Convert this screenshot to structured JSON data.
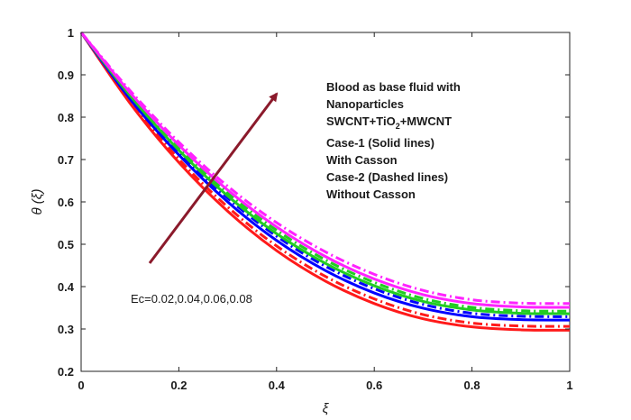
{
  "chart_data": {
    "type": "line",
    "xlabel": "ξ",
    "ylabel": "θ (ξ)",
    "xlim": [
      0,
      1
    ],
    "ylim": [
      0.2,
      1
    ],
    "x_ticks": [
      "0",
      "0.2",
      "0.4",
      "0.6",
      "0.8",
      "1"
    ],
    "y_ticks": [
      "0.2",
      "0.3",
      "0.4",
      "0.5",
      "0.6",
      "0.7",
      "0.8",
      "0.9",
      "1"
    ],
    "grid": false,
    "legend_text": {
      "line1": "Blood as base fluid with",
      "line2": "Nanoparticles",
      "line3_pre": "SWCNT+TiO",
      "line3_sub": "2",
      "line3_post": "+MWCNT",
      "line4": "Case-1 (Solid lines)",
      "line5": "With Casson",
      "line6": "Case-2 (Dashed lines)",
      "line7": "Without Casson"
    },
    "arrow_label": "Ec=0.02,0.04,0.06,0.08",
    "arrow_color": "#8b1a2b",
    "x": [
      0,
      0.1,
      0.2,
      0.3,
      0.4,
      0.5,
      0.6,
      0.7,
      0.8,
      0.9,
      1.0
    ],
    "series": [
      {
        "case": "Case-1",
        "Ec": 0.02,
        "color": "#ff1a1a",
        "style": "solid",
        "values": [
          1.0,
          0.833,
          0.693,
          0.578,
          0.485,
          0.413,
          0.36,
          0.324,
          0.305,
          0.298,
          0.297
        ]
      },
      {
        "case": "Case-2",
        "Ec": 0.02,
        "color": "#ff1a1a",
        "style": "dashed",
        "values": [
          1.0,
          0.838,
          0.701,
          0.588,
          0.496,
          0.424,
          0.371,
          0.334,
          0.314,
          0.307,
          0.306
        ]
      },
      {
        "case": "Case-1",
        "Ec": 0.04,
        "color": "#0000ff",
        "style": "solid",
        "values": [
          1.0,
          0.843,
          0.711,
          0.6,
          0.509,
          0.438,
          0.385,
          0.349,
          0.329,
          0.322,
          0.321
        ]
      },
      {
        "case": "Case-2",
        "Ec": 0.04,
        "color": "#0000ff",
        "style": "dashed",
        "values": [
          1.0,
          0.848,
          0.718,
          0.609,
          0.519,
          0.448,
          0.395,
          0.358,
          0.337,
          0.33,
          0.329
        ]
      },
      {
        "case": "Case-1",
        "Ec": 0.06,
        "color": "#22cc22",
        "style": "solid",
        "values": [
          1.0,
          0.851,
          0.722,
          0.614,
          0.525,
          0.455,
          0.402,
          0.365,
          0.345,
          0.337,
          0.336
        ]
      },
      {
        "case": "Case-2",
        "Ec": 0.06,
        "color": "#22cc22",
        "style": "dashed",
        "values": [
          1.0,
          0.855,
          0.728,
          0.621,
          0.533,
          0.463,
          0.41,
          0.372,
          0.351,
          0.343,
          0.342
        ]
      },
      {
        "case": "Case-1",
        "Ec": 0.08,
        "color": "#ff22ff",
        "style": "solid",
        "values": [
          1.0,
          0.858,
          0.734,
          0.628,
          0.541,
          0.471,
          0.418,
          0.381,
          0.36,
          0.352,
          0.351
        ]
      },
      {
        "case": "Case-2",
        "Ec": 0.08,
        "color": "#ff22ff",
        "style": "dashed",
        "values": [
          1.0,
          0.863,
          0.741,
          0.637,
          0.551,
          0.482,
          0.429,
          0.391,
          0.369,
          0.361,
          0.36
        ]
      }
    ]
  }
}
